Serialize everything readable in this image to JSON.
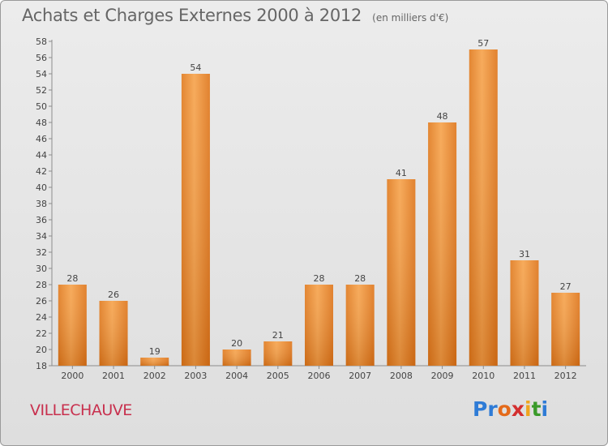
{
  "chart_data": {
    "type": "bar",
    "title": "Achats et Charges Externes 2000 à 2012",
    "subtitle": "(en milliers d'€)",
    "categories": [
      "2000",
      "2001",
      "2002",
      "2003",
      "2004",
      "2005",
      "2006",
      "2007",
      "2008",
      "2009",
      "2010",
      "2011",
      "2012"
    ],
    "values": [
      28,
      26,
      19,
      54,
      20,
      21,
      28,
      28,
      41,
      48,
      57,
      31,
      27
    ],
    "ylim": [
      18,
      58
    ],
    "yticks": [
      18,
      20,
      22,
      24,
      26,
      28,
      30,
      32,
      34,
      36,
      38,
      40,
      42,
      44,
      46,
      48,
      50,
      52,
      54,
      56,
      58
    ],
    "xlabel": "",
    "ylabel": "",
    "grid": false,
    "bar_color": "#f0922e"
  },
  "place": "VILLECHAUVE",
  "brand": [
    "Pr",
    "o",
    "x",
    "i",
    "t",
    "i"
  ]
}
